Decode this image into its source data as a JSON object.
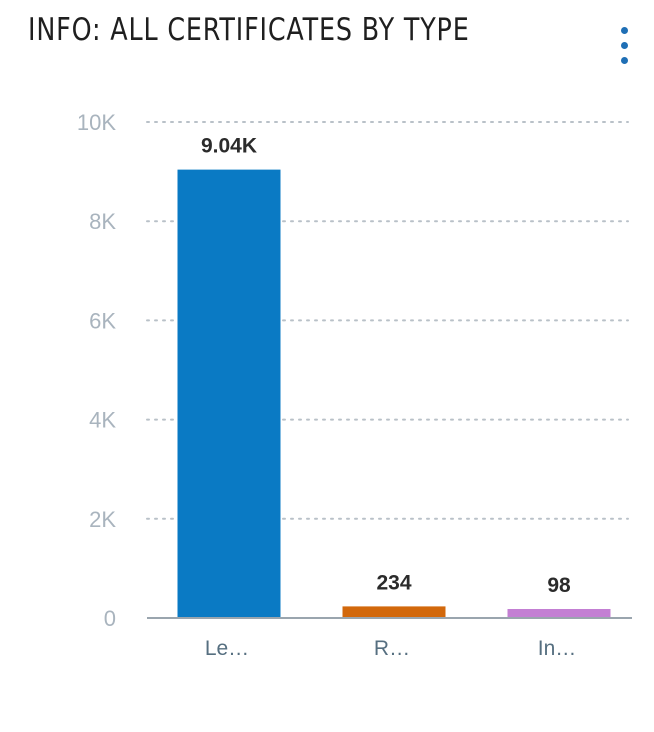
{
  "title": "INFO: ALL CERTIFICATES BY TYPE",
  "menu_icon": "more-vertical-icon",
  "chart_data": {
    "type": "bar",
    "title": "INFO: ALL CERTIFICATES BY TYPE",
    "categories": [
      "Le…",
      "R…",
      "In…"
    ],
    "values": [
      9040,
      234,
      98
    ],
    "value_labels": [
      "9.04K",
      "234",
      "98"
    ],
    "colors": [
      "#0a7ac4",
      "#d2680c",
      "#c37fd3"
    ],
    "ylim": [
      0,
      10000
    ],
    "yticks": [
      0,
      2000,
      4000,
      6000,
      8000,
      10000
    ],
    "ytick_labels": [
      "0",
      "2K",
      "4K",
      "6K",
      "8K",
      "10K"
    ],
    "grid": true,
    "grid_style": "dotted",
    "xlabel": "",
    "ylabel": ""
  }
}
